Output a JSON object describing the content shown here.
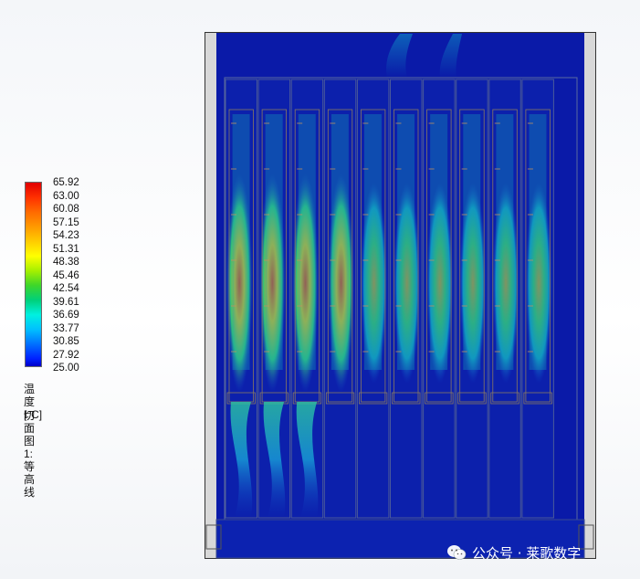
{
  "legend": {
    "ticks": [
      "65.92",
      "63.00",
      "60.08",
      "57.15",
      "54.23",
      "51.31",
      "48.38",
      "45.46",
      "42.54",
      "39.61",
      "36.69",
      "33.77",
      "30.85",
      "27.92",
      "25.00"
    ],
    "unit_label": "温度 [°C]",
    "plot_label": "切面图 1: 等高线"
  },
  "colors": {
    "cold": "#0a1aa8",
    "hot": "#e10000",
    "frame": "#d8d8d8"
  },
  "watermark": {
    "icon": "wechat-icon",
    "text": "公众号 · 莱歌数字"
  }
}
